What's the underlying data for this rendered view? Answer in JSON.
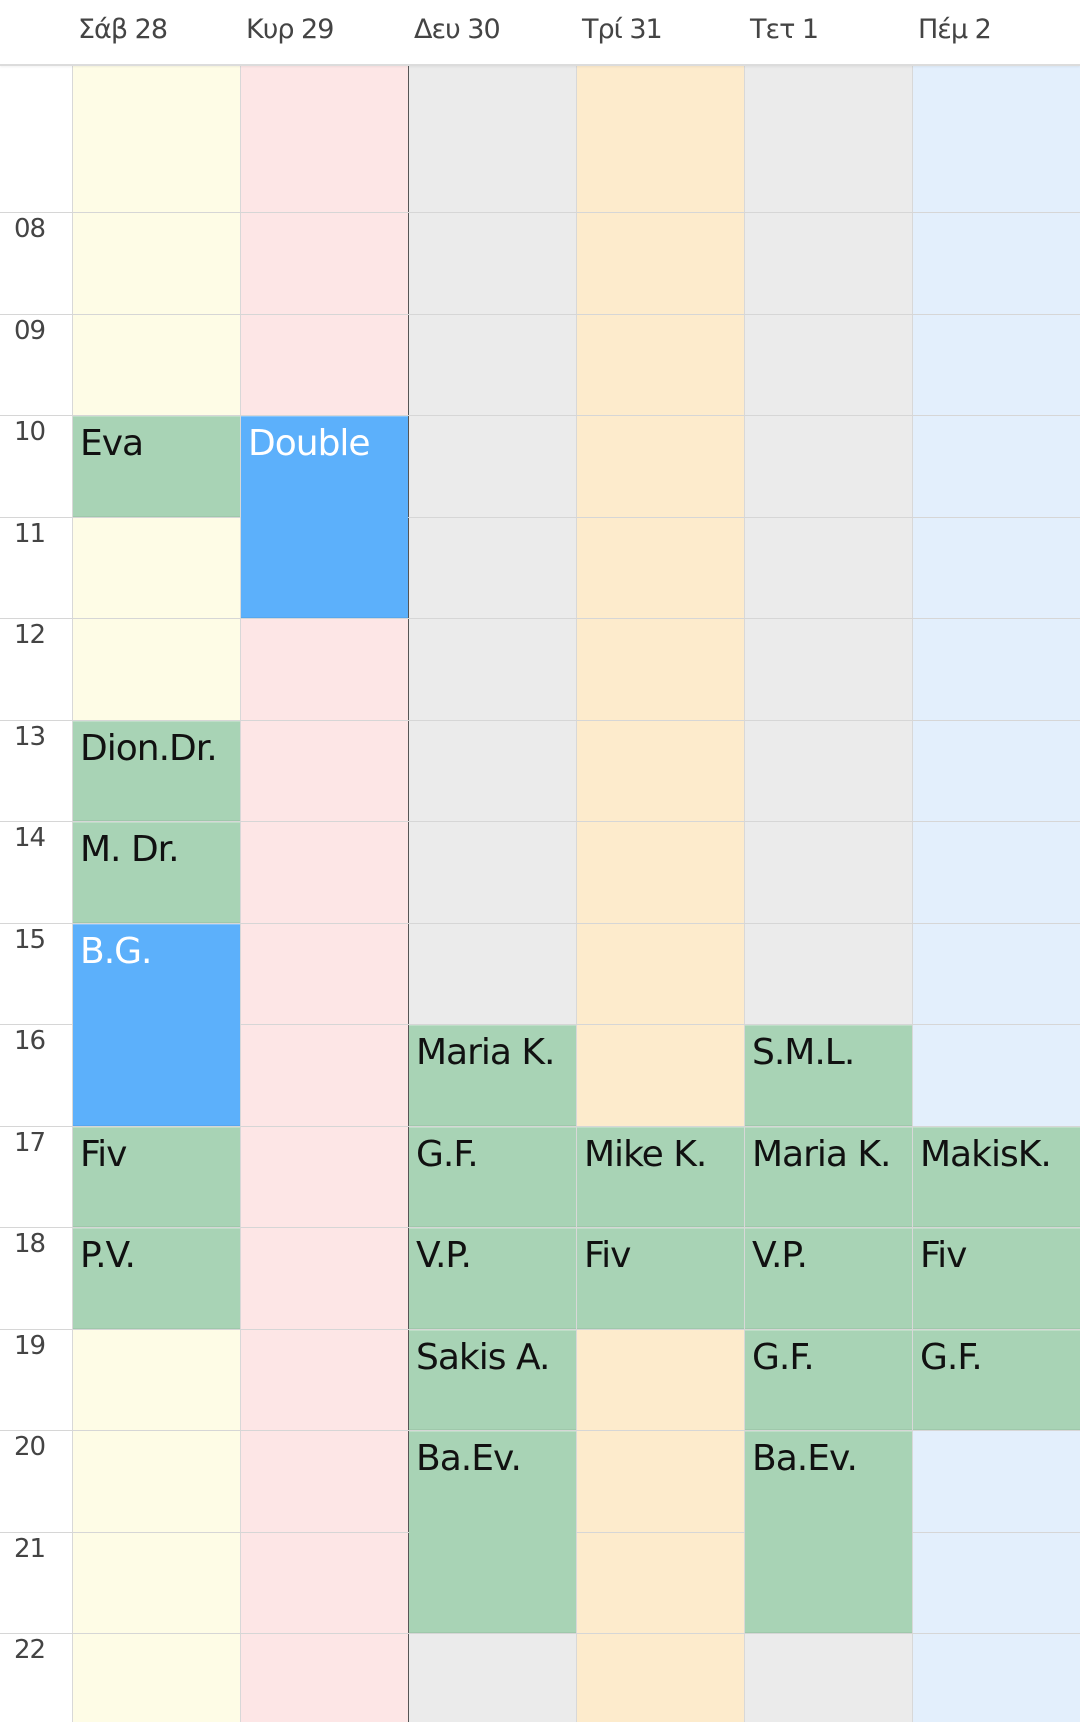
{
  "colors": {
    "green": "#a8d3b5",
    "blue": "#5cb0fb",
    "green_text": "#111111",
    "blue_text": "#ffffff"
  },
  "days": [
    {
      "label": "Σάβ 28",
      "bg": "#fefce6"
    },
    {
      "label": "Κυρ 29",
      "bg": "#fde6e6"
    },
    {
      "label": "Δευ 30",
      "bg": "#ebebeb",
      "today": true
    },
    {
      "label": "Τρί 31",
      "bg": "#fdebcc"
    },
    {
      "label": "Τετ 1",
      "bg": "#ebebeb"
    },
    {
      "label": "Πέμ 2",
      "bg": "#e3effc"
    }
  ],
  "hours": [
    "08",
    "09",
    "10",
    "11",
    "12",
    "13",
    "14",
    "15",
    "16",
    "17",
    "18",
    "19",
    "20",
    "21",
    "22"
  ],
  "events": [
    {
      "day": 0,
      "start": 10,
      "end": 11,
      "label": "Eva",
      "color": "green"
    },
    {
      "day": 0,
      "start": 13,
      "end": 14,
      "label": "Dion.Dr.",
      "color": "green"
    },
    {
      "day": 0,
      "start": 14,
      "end": 15,
      "label": "M. Dr.",
      "color": "green"
    },
    {
      "day": 0,
      "start": 15,
      "end": 17,
      "label": "B.G.",
      "color": "blue"
    },
    {
      "day": 0,
      "start": 17,
      "end": 18,
      "label": "Fiv",
      "color": "green"
    },
    {
      "day": 0,
      "start": 18,
      "end": 19,
      "label": "P.V.",
      "color": "green"
    },
    {
      "day": 1,
      "start": 10,
      "end": 12,
      "label": "Double",
      "color": "blue"
    },
    {
      "day": 2,
      "start": 16,
      "end": 17,
      "label": "Maria K.",
      "color": "green"
    },
    {
      "day": 2,
      "start": 17,
      "end": 18,
      "label": "G.F.",
      "color": "green"
    },
    {
      "day": 2,
      "start": 18,
      "end": 19,
      "label": "V.P.",
      "color": "green"
    },
    {
      "day": 2,
      "start": 19,
      "end": 20,
      "label": "Sakis A.",
      "color": "green"
    },
    {
      "day": 2,
      "start": 20,
      "end": 22,
      "label": "Ba.Ev.",
      "color": "green"
    },
    {
      "day": 3,
      "start": 17,
      "end": 18,
      "label": "Mike K.",
      "color": "green"
    },
    {
      "day": 3,
      "start": 18,
      "end": 19,
      "label": "Fiv",
      "color": "green"
    },
    {
      "day": 4,
      "start": 16,
      "end": 17,
      "label": "S.M.L.",
      "color": "green"
    },
    {
      "day": 4,
      "start": 17,
      "end": 18,
      "label": "Maria K.",
      "color": "green"
    },
    {
      "day": 4,
      "start": 18,
      "end": 19,
      "label": "V.P.",
      "color": "green"
    },
    {
      "day": 4,
      "start": 19,
      "end": 20,
      "label": "G.F.",
      "color": "green"
    },
    {
      "day": 4,
      "start": 20,
      "end": 22,
      "label": "Ba.Ev.",
      "color": "green"
    },
    {
      "day": 5,
      "start": 17,
      "end": 18,
      "label": "MakisK.",
      "color": "green"
    },
    {
      "day": 5,
      "start": 18,
      "end": 19,
      "label": "Fiv",
      "color": "green"
    },
    {
      "day": 5,
      "start": 19,
      "end": 20,
      "label": "G.F.",
      "color": "green"
    }
  ]
}
